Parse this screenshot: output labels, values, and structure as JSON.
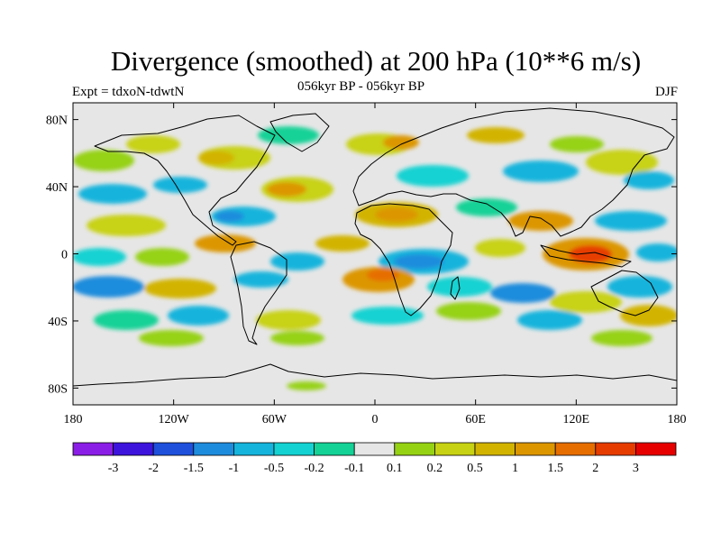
{
  "title": "Divergence (smoothed) at 200 hPa (10**6 m/s)",
  "subtitle": "056kyr BP - 056kyr BP",
  "experiment_label": "Expt = tdxoN-tdwtN",
  "season_label": "DJF",
  "map": {
    "projection": "cylindrical equidistant",
    "longitude_range": [
      -180,
      180
    ],
    "latitude_range": [
      -90,
      90
    ],
    "lat_ticks": [
      {
        "value": 80,
        "label": "80N"
      },
      {
        "value": 40,
        "label": "40N"
      },
      {
        "value": 0,
        "label": "0"
      },
      {
        "value": -40,
        "label": "40S"
      },
      {
        "value": -80,
        "label": "80S"
      }
    ],
    "lon_ticks": [
      {
        "value": -180,
        "label": "180"
      },
      {
        "value": -120,
        "label": "120W"
      },
      {
        "value": -60,
        "label": "60W"
      },
      {
        "value": 0,
        "label": "0"
      },
      {
        "value": 60,
        "label": "60E"
      },
      {
        "value": 120,
        "label": "120E"
      },
      {
        "value": 180,
        "label": "180"
      }
    ],
    "background_color": "#e6e6e6",
    "coastline_color": "#000000"
  },
  "colorbar": {
    "colors": [
      "#8b1ee6",
      "#3c14dc",
      "#1e50dc",
      "#1e8cdc",
      "#14b4dc",
      "#14d2d2",
      "#14d296",
      "#e6e6e6",
      "#96d214",
      "#c8d214",
      "#d2b400",
      "#dc9600",
      "#e66e00",
      "#e63c00",
      "#e60000"
    ],
    "labels": [
      "-3",
      "-2",
      "-1.5",
      "-1",
      "-0.5",
      "-0.2",
      "-0.1",
      "0.1",
      "0.2",
      "0.5",
      "1",
      "1.5",
      "2",
      "3"
    ]
  }
}
